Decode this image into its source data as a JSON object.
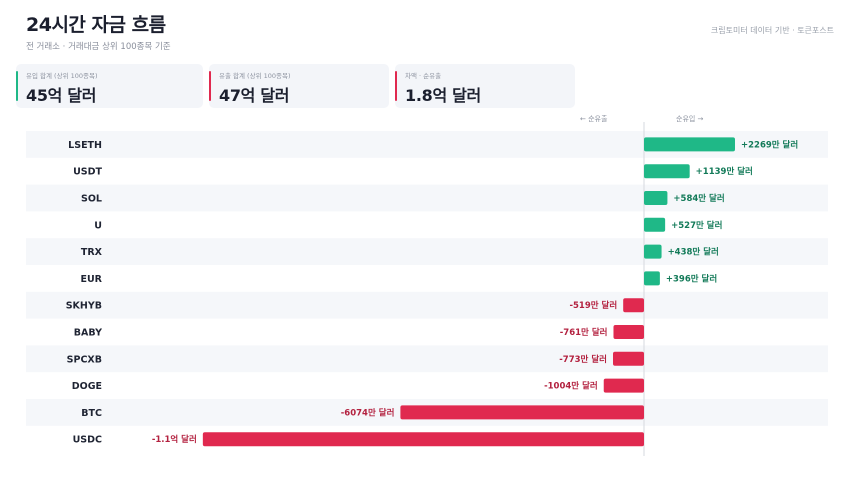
{
  "header": {
    "title": "24시간 자금 흐름",
    "subtitle": "전 거래소 · 거래대금 상위 100종목 기준",
    "source": "크립토미터 데이터 기반 · 토큰포스트"
  },
  "summary": {
    "inflow": {
      "label": "유입 합계 (상위 100종목)",
      "value": "45억 달러",
      "color": "#1fb887"
    },
    "outflow": {
      "label": "유출 합계 (상위 100종목)",
      "value": "47억 달러",
      "color": "#e0294f"
    },
    "net": {
      "label": "차액 · 순유출",
      "value": "1.8억 달러",
      "color": "#e0294f"
    }
  },
  "axis_notes": {
    "outflow": "← 순유출",
    "inflow": "순유입 →"
  },
  "colors": {
    "positive": "#1fb887",
    "negative": "#e0294f",
    "positive_text": "#127a58",
    "negative_text": "#b3213f"
  },
  "chart_data": {
    "type": "bar",
    "orientation": "horizontal",
    "unit": "만 달러",
    "categories": [
      "LSETH",
      "USDT",
      "SOL",
      "U",
      "TRX",
      "EUR",
      "SKHYB",
      "BABY",
      "SPCXB",
      "DOGE",
      "BTC",
      "USDC"
    ],
    "values": [
      2269,
      1139,
      584,
      527,
      438,
      396,
      -519,
      -761,
      -773,
      -1004,
      -6074,
      -11000
    ],
    "labels": [
      "+2269만 달러",
      "+1139만 달러",
      "+584만 달러",
      "+527만 달러",
      "+438만 달러",
      "+396만 달러",
      "-519만 달러",
      "-761만 달러",
      "-773만 달러",
      "-1004만 달러",
      "-6074만 달러",
      "-1.1억 달러"
    ]
  }
}
